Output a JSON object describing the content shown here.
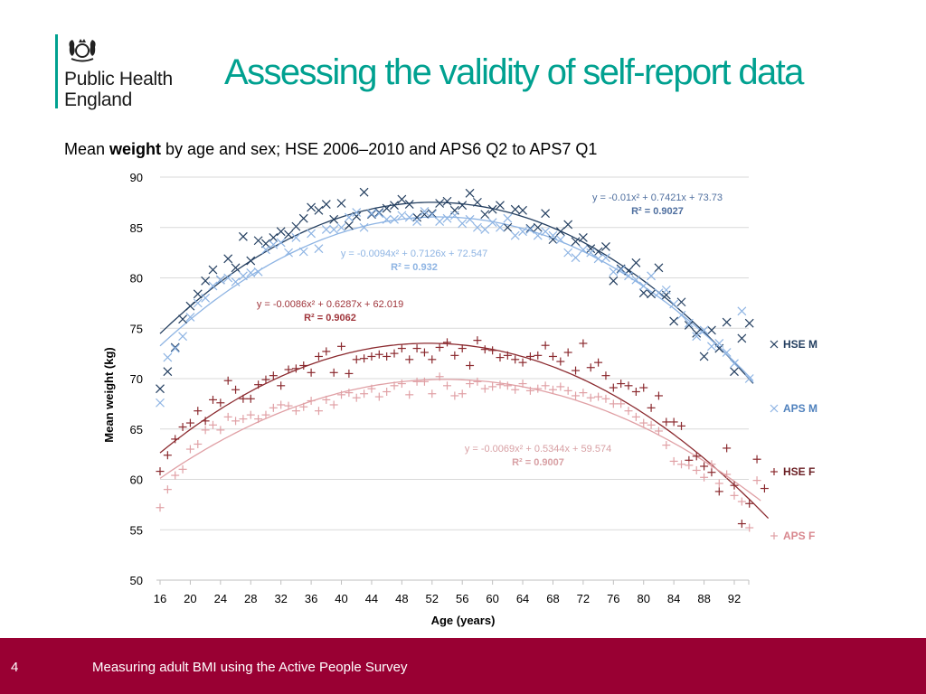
{
  "header": {
    "org_name_line1": "Public Health",
    "org_name_line2": "England",
    "title": "Assessing the validity of self-report data",
    "subtitle_pre": "Mean ",
    "subtitle_bold": "weight",
    "subtitle_post": " by age and sex; HSE 2006–2010 and APS6 Q2 to APS7 Q1"
  },
  "footer": {
    "page_number": "4",
    "text": "Measuring adult BMI using the Active People Survey"
  },
  "colors": {
    "brand_teal": "#00a190",
    "footer_red": "#990033",
    "hse_m": "#243f60",
    "aps_m": "#8eb4e3",
    "hse_f": "#8b2a2f",
    "aps_f": "#e0a0a5"
  },
  "chart_data": {
    "type": "scatter",
    "title": "",
    "xlabel": "Age (years)",
    "ylabel": "Mean weight (kg)",
    "xlim": [
      16,
      95
    ],
    "ylim": [
      50,
      90
    ],
    "xticks": [
      16,
      20,
      24,
      28,
      32,
      36,
      40,
      44,
      48,
      52,
      56,
      60,
      64,
      68,
      72,
      76,
      80,
      84,
      88,
      92
    ],
    "yticks": [
      50,
      55,
      60,
      65,
      70,
      75,
      80,
      85,
      90
    ],
    "grid": "horizontal",
    "legend_position": "right",
    "series": [
      {
        "name": "HSE M",
        "marker": "x",
        "color": "#243f60",
        "x_start": 16,
        "values": [
          69.0,
          70.7,
          73.1,
          75.9,
          77.2,
          78.4,
          79.7,
          80.8,
          79.8,
          81.9,
          81.0,
          84.1,
          81.7,
          83.7,
          83.4,
          84.0,
          84.6,
          84.3,
          85.1,
          85.9,
          87.0,
          86.7,
          87.3,
          85.8,
          87.4,
          85.2,
          86.1,
          88.5,
          86.3,
          86.5,
          86.9,
          87.2,
          87.8,
          87.3,
          86.0,
          86.3,
          86.4,
          87.4,
          87.6,
          86.7,
          87.2,
          88.4,
          87.5,
          86.3,
          86.8,
          87.2,
          85.0,
          86.8,
          86.7,
          84.9,
          85.0,
          86.4,
          83.8,
          84.6,
          85.3,
          83.6,
          84.0,
          82.9,
          82.6,
          83.1,
          79.7,
          80.9,
          80.7,
          81.5,
          78.5,
          78.4,
          81.0,
          78.3,
          75.7,
          77.6,
          75.3,
          74.5,
          72.2,
          74.8,
          73.0,
          75.6,
          70.7,
          74.0,
          75.5
        ],
        "trendline": {
          "equation": "y = -0.01x² + 0.7421x + 73.73",
          "r2_label": "R² = 0.9027",
          "a": -0.01,
          "b": 0.7421,
          "c": 73.73
        }
      },
      {
        "name": "APS M",
        "marker": "x",
        "color": "#8eb4e3",
        "x_start": 16,
        "values": [
          67.6,
          72.1,
          73.0,
          74.2,
          76.1,
          77.5,
          78.0,
          79.2,
          79.8,
          80.0,
          79.6,
          80.2,
          80.5,
          80.6,
          82.8,
          83.3,
          83.5,
          82.5,
          84.0,
          82.6,
          84.4,
          82.9,
          84.8,
          84.8,
          85.0,
          86.0,
          86.5,
          85.0,
          86.4,
          86.4,
          85.8,
          85.8,
          86.2,
          86.0,
          85.6,
          86.6,
          86.3,
          85.6,
          85.9,
          86.2,
          85.4,
          85.8,
          85.0,
          84.8,
          85.5,
          85.0,
          85.9,
          84.2,
          84.6,
          84.8,
          84.2,
          84.6,
          84.2,
          83.8,
          82.5,
          82.0,
          82.8,
          82.5,
          81.9,
          82.0,
          80.6,
          80.8,
          80.2,
          79.8,
          79.2,
          80.2,
          78.5,
          78.8,
          77.4,
          76.3,
          75.5,
          74.2,
          74.8,
          73.2,
          73.5,
          72.6,
          71.5,
          76.7,
          70.0
        ],
        "trendline": {
          "equation": "y = -0.0094x² + 0.7126x + 72.547",
          "r2_label": "R² = 0.932",
          "a": -0.0094,
          "b": 0.7126,
          "c": 72.547
        }
      },
      {
        "name": "HSE F",
        "marker": "+",
        "color": "#8b2a2f",
        "x_start": 16,
        "values": [
          60.8,
          62.4,
          64.0,
          65.2,
          65.6,
          66.8,
          65.8,
          67.9,
          67.6,
          69.8,
          68.9,
          68.0,
          68.0,
          69.4,
          69.9,
          70.3,
          69.3,
          70.9,
          71.0,
          71.3,
          70.6,
          72.2,
          72.7,
          70.6,
          73.2,
          70.5,
          71.9,
          72.0,
          72.2,
          72.4,
          72.2,
          72.5,
          73.0,
          71.9,
          73.0,
          72.6,
          71.9,
          73.1,
          73.6,
          72.3,
          73.0,
          71.3,
          73.8,
          72.9,
          72.8,
          72.1,
          72.3,
          71.9,
          71.6,
          72.2,
          72.3,
          73.3,
          72.2,
          71.7,
          72.6,
          70.8,
          73.5,
          71.1,
          71.6,
          70.3,
          69.1,
          69.5,
          69.3,
          68.7,
          69.1,
          67.1,
          68.3,
          65.7,
          65.7,
          65.3,
          61.9,
          62.3,
          61.3,
          60.7,
          58.8,
          63.1,
          59.4,
          55.6,
          57.6,
          62.0,
          59.1
        ],
        "trendline": {
          "equation": "y = -0.0086x² + 0.6287x + 62.019",
          "r2_label": "R² = 0.9062",
          "a": -0.0086,
          "b": 0.6287,
          "c": 62.019
        }
      },
      {
        "name": "APS F",
        "marker": "+",
        "color": "#e0a0a5",
        "x_start": 16,
        "values": [
          57.2,
          59.0,
          60.4,
          61.0,
          63.0,
          63.5,
          64.9,
          65.4,
          64.9,
          66.2,
          65.8,
          66.0,
          66.4,
          66.0,
          66.4,
          67.1,
          67.4,
          67.3,
          66.8,
          67.2,
          67.8,
          66.8,
          67.9,
          67.4,
          68.4,
          68.6,
          68.1,
          68.5,
          69.0,
          68.2,
          68.7,
          69.3,
          69.5,
          68.4,
          69.7,
          69.7,
          68.5,
          70.2,
          69.3,
          68.3,
          68.5,
          69.5,
          69.7,
          69.0,
          69.2,
          69.4,
          69.3,
          68.9,
          69.5,
          68.8,
          69.0,
          69.3,
          68.9,
          69.2,
          68.8,
          68.3,
          68.6,
          68.1,
          68.2,
          68.0,
          67.5,
          67.5,
          66.8,
          66.2,
          65.6,
          65.4,
          64.8,
          63.4,
          61.8,
          61.5,
          61.4,
          60.9,
          60.2,
          61.5,
          59.6,
          60.5,
          58.4,
          57.8,
          55.2,
          59.9
        ],
        "trendline": {
          "equation": "y = -0.0069x² + 0.5344x + 59.574",
          "r2_label": "R² = 0.9007",
          "a": -0.0069,
          "b": 0.5344,
          "c": 59.574
        }
      }
    ]
  }
}
